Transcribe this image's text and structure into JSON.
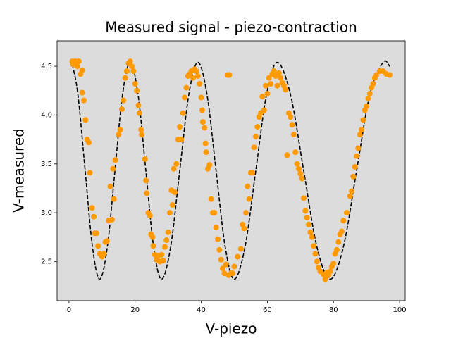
{
  "chart_data": {
    "type": "scatter",
    "title": "Measured signal - piezo-contraction",
    "x_label": "V-piezo",
    "y_label": "V-measured",
    "background": "#dcdcdc",
    "color": "#ff9900",
    "x": [
      1,
      1.2,
      2,
      2.5,
      3,
      3.5,
      4,
      4,
      4.5,
      5,
      5.5,
      6,
      6.3,
      7,
      7.5,
      7.8,
      8.3,
      8.8,
      9.3,
      10,
      10.5,
      11,
      11.5,
      12,
      12.5,
      13,
      13.3,
      13.6,
      14,
      15,
      15.5,
      16,
      16.5,
      17,
      17.5,
      18,
      18.5,
      19,
      19.5,
      20,
      20.5,
      21,
      21.3,
      21.8,
      22,
      23,
      23.3,
      23.5,
      24,
      24.5,
      24.8,
      25.3,
      25.5,
      26,
      26.5,
      27,
      27.5,
      28,
      28.5,
      29,
      29.5,
      30,
      30.5,
      31,
      31.3,
      31.7,
      32,
      32.5,
      33,
      33.5,
      34,
      34.5,
      35,
      35.5,
      36,
      36.5,
      37,
      37.5,
      38,
      38.5,
      39,
      39.5,
      40,
      40.3,
      40.5,
      41,
      41.3,
      41.5,
      42,
      42.5,
      43,
      43.5,
      44,
      44.5,
      45,
      45.5,
      46,
      46.5,
      47,
      47.5,
      48,
      48.5,
      48.3,
      49,
      49.5,
      50,
      51,
      52,
      52.5,
      53,
      53.5,
      54,
      54.5,
      55,
      55.5,
      56,
      56.5,
      57,
      57.5,
      58,
      58.5,
      59,
      59.5,
      60,
      60.5,
      61,
      61.5,
      62,
      62.5,
      63,
      63.5,
      64,
      64.5,
      65,
      65.5,
      66,
      66.5,
      67,
      67.5,
      68,
      68.5,
      69,
      69.5,
      70,
      70.5,
      71,
      71.5,
      72,
      72.5,
      73,
      73.5,
      74,
      74.5,
      75,
      75.5,
      76,
      77,
      77.5,
      78,
      78.5,
      79,
      79.5,
      80,
      80.5,
      81,
      81.5,
      82,
      82.5,
      83,
      84,
      85,
      85.5,
      86,
      86.5,
      87,
      87.5,
      88,
      88.5,
      89,
      89.5,
      90,
      90.5,
      91,
      91.5,
      92,
      92.5,
      93,
      94,
      95,
      96,
      97
    ],
    "values": [
      4.55,
      4.52,
      4.55,
      4.5,
      4.55,
      4.42,
      4.46,
      4.23,
      4.15,
      3.95,
      3.75,
      3.72,
      3.41,
      3.05,
      2.96,
      2.79,
      2.79,
      2.66,
      2.58,
      2.55,
      2.58,
      2.7,
      2.71,
      2.92,
      3.27,
      2.93,
      3.45,
      3.14,
      3.54,
      3.8,
      3.85,
      4.06,
      4.15,
      4.38,
      4.45,
      4.53,
      4.55,
      4.5,
      4.45,
      4.32,
      4.25,
      4.1,
      4.02,
      3.85,
      3.8,
      3.55,
      3.33,
      3.2,
      3.0,
      2.97,
      2.78,
      2.75,
      2.66,
      2.57,
      2.52,
      2.56,
      2.5,
      2.57,
      2.51,
      2.65,
      2.72,
      2.8,
      3.0,
      3.23,
      3.08,
      3.45,
      3.21,
      3.5,
      3.75,
      3.88,
      3.75,
      4.02,
      4.18,
      4.28,
      4.4,
      4.42,
      4.45,
      4.38,
      4.47,
      4.45,
      4.4,
      4.32,
      4.18,
      4.05,
      3.93,
      3.87,
      3.71,
      3.62,
      3.45,
      3.49,
      3.14,
      3.0,
      3.0,
      2.85,
      2.73,
      2.62,
      2.52,
      2.43,
      2.38,
      2.47,
      4.41,
      4.41,
      2.36,
      2.38,
      2.38,
      2.45,
      2.55,
      2.63,
      2.88,
      2.84,
      3.0,
      3.27,
      3.14,
      3.41,
      3.41,
      3.67,
      3.78,
      3.88,
      3.98,
      4.02,
      4.19,
      4.05,
      4.3,
      4.22,
      4.38,
      4.32,
      4.42,
      4.45,
      4.4,
      4.3,
      4.43,
      4.38,
      4.33,
      4.3,
      4.26,
      3.59,
      4.02,
      3.98,
      3.9,
      3.8,
      3.62,
      3.5,
      3.45,
      3.4,
      3.35,
      3.15,
      3.02,
      2.95,
      2.88,
      2.8,
      2.75,
      2.66,
      2.58,
      2.5,
      2.44,
      2.4,
      2.37,
      2.32,
      2.39,
      2.36,
      2.4,
      2.45,
      2.48,
      2.58,
      2.62,
      2.7,
      2.78,
      2.81,
      2.92,
      3.0,
      3.17,
      3.22,
      3.37,
      3.47,
      3.58,
      3.66,
      3.8,
      3.85,
      3.95,
      4.05,
      4.09,
      4.17,
      4.22,
      4.28,
      4.32,
      4.38,
      4.41,
      4.45,
      4.45,
      4.42,
      4.41
    ],
    "fit": {
      "color": "#000000",
      "dashed": true,
      "x": [
        1,
        2.7,
        4.9,
        7.1,
        9.3,
        11.6,
        13.9,
        16.2,
        18.5,
        20.9,
        23.25,
        25.6,
        28,
        30.75,
        33.5,
        36.25,
        39,
        41.75,
        44.5,
        47.25,
        50,
        53.25,
        56.5,
        59.75,
        63,
        67,
        71,
        75,
        79,
        83,
        87,
        91,
        95,
        97
      ],
      "values": [
        4.52,
        4.21,
        3.43,
        2.65,
        2.32,
        2.65,
        3.43,
        4.21,
        4.54,
        4.21,
        3.43,
        2.65,
        2.32,
        2.65,
        3.43,
        4.21,
        4.54,
        4.21,
        3.43,
        2.65,
        2.32,
        2.65,
        3.43,
        4.21,
        4.54,
        4.21,
        3.43,
        2.65,
        2.32,
        2.65,
        3.43,
        4.21,
        4.54,
        4.5
      ]
    },
    "xlim": [
      -3.6,
      101.7
    ],
    "ylim": [
      2.1,
      4.76
    ],
    "xticks": [
      0,
      20,
      40,
      60,
      80,
      100
    ],
    "yticks": [
      2.5,
      {
        "value": 3.0,
        "label": "3.0"
      },
      3.5,
      {
        "value": 4.0,
        "label": "4.0"
      },
      4.5
    ],
    "grid": false
  }
}
